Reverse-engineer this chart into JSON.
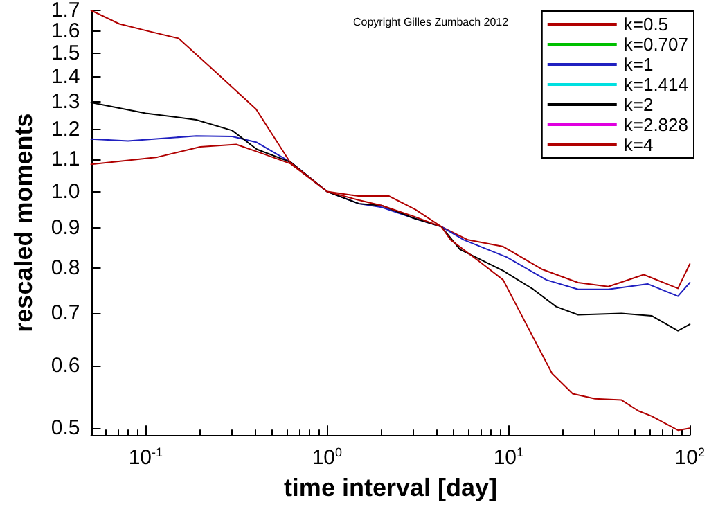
{
  "chart_data": {
    "type": "line",
    "xlabel": "time interval [day]",
    "ylabel": "rescaled moments",
    "annotations": [
      "Copyright Gilles Zumbach 2012"
    ],
    "log": "xy",
    "grid": false,
    "legend": "top right",
    "marker": "none",
    "line_style": "solid",
    "xlim": [
      0.05,
      100
    ],
    "xticks": [
      {
        "value": 0.1,
        "label": "10$^{-1}$"
      },
      {
        "value": 1,
        "label": "10$^{0}$"
      },
      {
        "value": 10,
        "label": "10$^{1}$"
      },
      {
        "value": 100,
        "label": "10$^{2}$"
      }
    ],
    "ylim": [
      0.49,
      1.7
    ],
    "yticks": [
      0.5,
      0.6,
      0.7,
      0.8,
      0.9,
      {
        "value": 1,
        "label": "1.0"
      },
      1.1,
      1.2,
      1.3,
      1.4,
      1.5,
      1.6,
      1.7
    ],
    "series": [
      {
        "name": "k=0.5",
        "color": "#b00000",
        "x": [
          0.05,
          0.116,
          0.2,
          0.316,
          0.44,
          0.63,
          1,
          1.49,
          2.19,
          3.06,
          4.27,
          5.97,
          9.35,
          15.4,
          24.2,
          35.5,
          55.7,
          86,
          100
        ],
        "values": [
          1.083,
          1.106,
          1.14,
          1.148,
          1.118,
          1.085,
          1.0,
          0.987,
          0.987,
          0.949,
          0.902,
          0.868,
          0.851,
          0.796,
          0.766,
          0.757,
          0.784,
          0.753,
          0.809
        ]
      },
      {
        "name": "k=0.707",
        "color": "#00c000"
      },
      {
        "name": "k=1",
        "color": "#2020c0",
        "x": [
          0.05,
          0.08,
          0.19,
          0.3,
          0.41,
          0.63,
          1,
          1.5,
          2,
          3,
          4.27,
          5.67,
          9.8,
          16.2,
          24.2,
          35.5,
          58.5,
          86,
          100
        ],
        "values": [
          1.166,
          1.16,
          1.177,
          1.175,
          1.155,
          1.09,
          1.0,
          0.965,
          0.955,
          0.925,
          0.902,
          0.868,
          0.825,
          0.772,
          0.751,
          0.751,
          0.763,
          0.736,
          0.766
        ]
      },
      {
        "name": "k=1.414",
        "color": "#00e0e0"
      },
      {
        "name": "k=2",
        "color": "#000000",
        "x": [
          0.05,
          0.1,
          0.19,
          0.3,
          0.41,
          0.63,
          1,
          1.5,
          2,
          3,
          4.27,
          5.4,
          9.35,
          13.7,
          18.3,
          24.2,
          42,
          61.6,
          86,
          100
        ],
        "values": [
          1.298,
          1.258,
          1.234,
          1.196,
          1.132,
          1.09,
          1.0,
          0.965,
          0.96,
          0.925,
          0.902,
          0.844,
          0.793,
          0.751,
          0.714,
          0.697,
          0.7,
          0.695,
          0.665,
          0.678
        ]
      },
      {
        "name": "k=2.828",
        "color": "#e000e0"
      },
      {
        "name": "k=4",
        "color": "#b00000",
        "x": [
          0.05,
          0.0716,
          0.103,
          0.152,
          0.238,
          0.406,
          0.627,
          1,
          1.5,
          2,
          3,
          4.27,
          4.8,
          7.05,
          9.35,
          13.7,
          17.4,
          22.6,
          30,
          42,
          52,
          61.6,
          86,
          100
        ],
        "values": [
          1.7,
          1.634,
          1.6,
          1.566,
          1.426,
          1.273,
          1.089,
          1.0,
          0.975,
          0.96,
          0.93,
          0.902,
          0.868,
          0.812,
          0.772,
          0.652,
          0.587,
          0.553,
          0.545,
          0.543,
          0.526,
          0.518,
          0.497,
          0.5
        ]
      }
    ]
  }
}
